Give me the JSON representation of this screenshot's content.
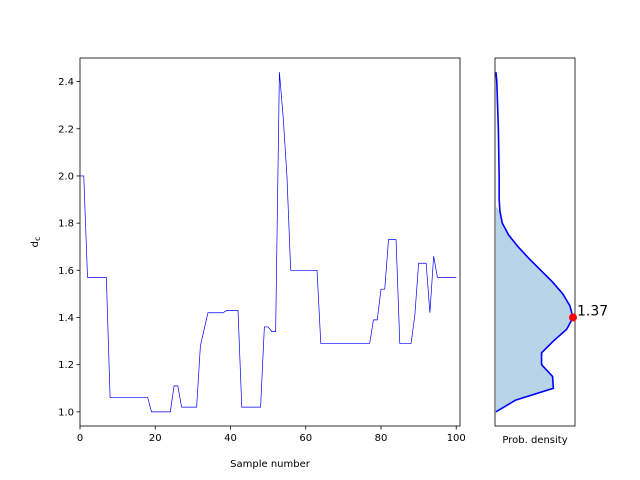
{
  "chart_data": [
    {
      "type": "line",
      "xlabel": "Sample number",
      "ylabel": "d_c",
      "xlim": [
        0,
        101
      ],
      "ylim": [
        0.94,
        2.5
      ],
      "xticks": [
        0,
        20,
        40,
        60,
        80,
        100
      ],
      "yticks": [
        1.0,
        1.2,
        1.4,
        1.6,
        1.8,
        2.0,
        2.2,
        2.4
      ],
      "x": [
        0,
        1,
        2,
        7,
        8,
        18,
        19,
        24,
        25,
        26,
        27,
        31,
        32,
        34,
        38,
        39,
        42,
        43,
        48,
        49,
        50,
        51,
        52,
        53,
        54,
        55,
        56,
        63,
        64,
        77,
        78,
        79,
        80,
        81,
        82,
        83,
        84,
        85,
        88,
        89,
        90,
        91,
        92,
        93,
        94,
        95,
        100
      ],
      "values": [
        2.0,
        2.0,
        1.57,
        1.57,
        1.06,
        1.06,
        1.0,
        1.0,
        1.11,
        1.11,
        1.02,
        1.02,
        1.28,
        1.42,
        1.42,
        1.43,
        1.43,
        1.02,
        1.02,
        1.36,
        1.36,
        1.34,
        1.34,
        2.44,
        2.25,
        2.0,
        1.6,
        1.6,
        1.29,
        1.29,
        1.39,
        1.39,
        1.52,
        1.52,
        1.73,
        1.73,
        1.73,
        1.29,
        1.29,
        1.41,
        1.63,
        1.63,
        1.63,
        1.42,
        1.66,
        1.57,
        1.57
      ],
      "color": "#0000ff"
    },
    {
      "type": "area",
      "xlabel": "Prob. density",
      "ylim": [
        0.94,
        2.5
      ],
      "y": [
        1.0,
        1.05,
        1.1,
        1.15,
        1.2,
        1.25,
        1.3,
        1.35,
        1.4,
        1.45,
        1.5,
        1.55,
        1.6,
        1.65,
        1.7,
        1.75,
        1.8,
        1.85,
        1.9,
        2.0,
        2.1,
        2.2,
        2.3,
        2.4,
        2.44
      ],
      "density": [
        0.0,
        0.25,
        0.73,
        0.72,
        0.58,
        0.58,
        0.73,
        0.9,
        0.98,
        0.94,
        0.85,
        0.72,
        0.57,
        0.42,
        0.28,
        0.16,
        0.08,
        0.05,
        0.04,
        0.04,
        0.035,
        0.03,
        0.02,
        0.01,
        0.0
      ],
      "fill_range": [
        1.0,
        1.87
      ],
      "line_color": "#0000ff",
      "fill_color": "#b8d4e8",
      "marker": {
        "y": 1.4,
        "label": "1.37",
        "color": "#ff0000"
      }
    }
  ]
}
